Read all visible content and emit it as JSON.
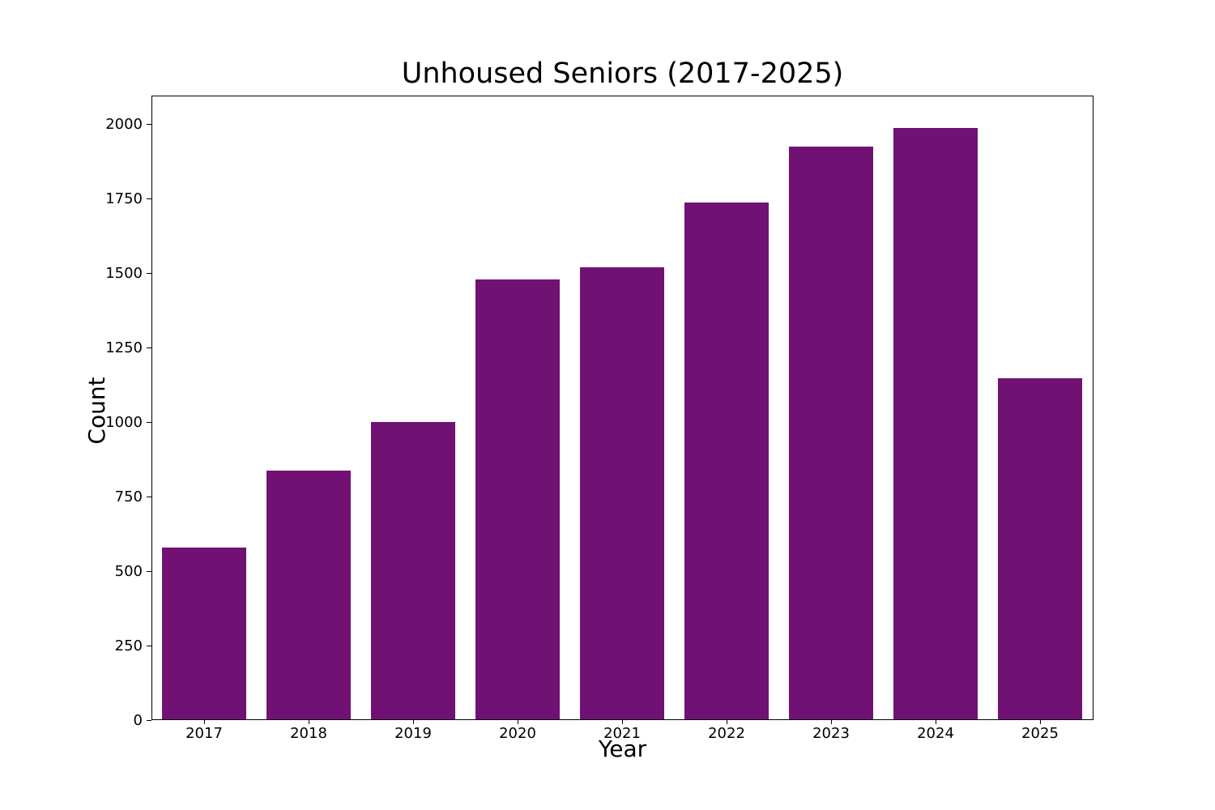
{
  "figure": {
    "title": "Unhoused Seniors (2017-2025)",
    "xlabel": "Year",
    "ylabel": "Count"
  },
  "chart_data": {
    "type": "bar",
    "title": "Unhoused Seniors (2017-2025)",
    "xlabel": "Year",
    "ylabel": "Count",
    "categories": [
      "2017",
      "2018",
      "2019",
      "2020",
      "2021",
      "2022",
      "2023",
      "2024",
      "2025"
    ],
    "values": [
      578,
      838,
      1000,
      1481,
      1520,
      1740,
      1928,
      1990,
      1148
    ],
    "yticks": [
      0,
      250,
      500,
      750,
      1000,
      1250,
      1500,
      1750,
      2000
    ],
    "ylim": [
      0,
      2096
    ],
    "grid": false,
    "legend": false,
    "bar_color": "#701173",
    "axis_color": "#000000",
    "background_color": "#ffffff"
  }
}
